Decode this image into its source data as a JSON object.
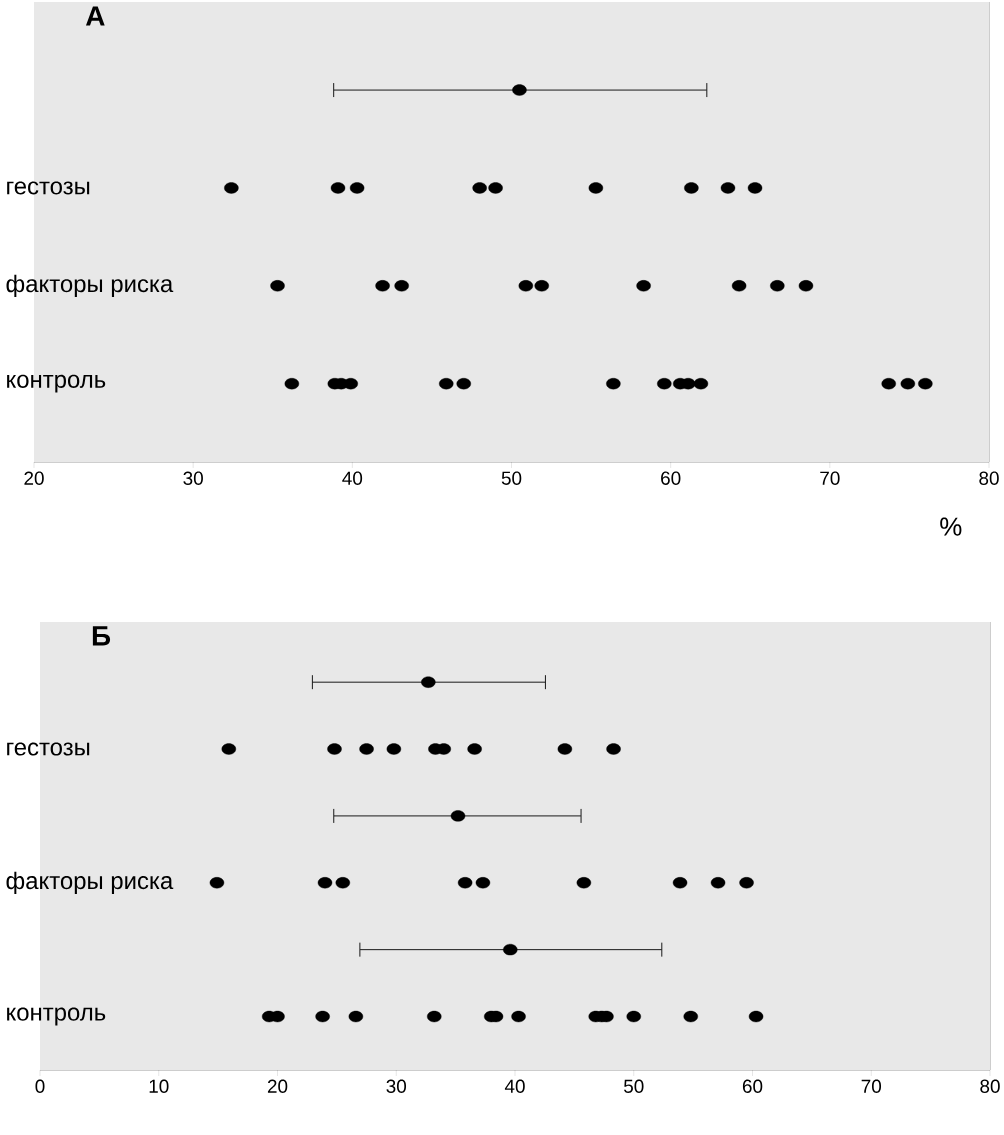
{
  "chart_data": [
    {
      "type": "scatter",
      "title": "А",
      "orientation": "horizontal",
      "categories": [
        null,
        "гестозы",
        "факторы риска",
        "контроль"
      ],
      "xlabel": "%",
      "xlim": [
        20,
        80
      ],
      "xticks": [
        20,
        30,
        40,
        50,
        60,
        70,
        80
      ],
      "series": [
        {
          "color": "#000000",
          "values": [
            50.5,
            null,
            null,
            null
          ],
          "errors": [
            [
              38.8,
              62.3
            ],
            null,
            null,
            null
          ]
        },
        {
          "color": "#000000",
          "x": [
            "гестозы",
            "гестозы",
            "гестозы",
            "гестозы",
            "гестозы",
            "гестозы",
            "гестозы",
            "гестозы",
            "гестозы"
          ],
          "values": [
            32.4,
            39.1,
            40.3,
            48.0,
            49.0,
            55.3,
            61.3,
            63.6,
            65.3
          ]
        },
        {
          "color": "#000000",
          "x": [
            "факторы риска",
            "факторы риска",
            "факторы риска",
            "факторы риска",
            "факторы риска",
            "факторы риска",
            "факторы риска",
            "факторы риска",
            "факторы риска"
          ],
          "values": [
            35.3,
            41.9,
            43.1,
            50.9,
            51.9,
            58.3,
            64.3,
            66.7,
            68.5
          ]
        },
        {
          "color": "#000000",
          "x": [
            "контроль",
            "контроль",
            "контроль",
            "контроль",
            "контроль",
            "контроль",
            "контроль",
            "контроль",
            "контроль",
            "контроль",
            "контроль",
            "контроль",
            "контроль",
            "контроль"
          ],
          "values": [
            36.2,
            38.9,
            39.3,
            39.9,
            45.9,
            47.0,
            56.4,
            59.6,
            60.6,
            61.1,
            61.9,
            73.7,
            74.9,
            76.0
          ]
        }
      ]
    },
    {
      "type": "scatter",
      "title": "Б",
      "orientation": "horizontal",
      "categories": [
        null,
        "гестозы",
        null,
        "факторы риска",
        null,
        "контроль"
      ],
      "xlim": [
        0,
        80
      ],
      "xticks": [
        0,
        10,
        20,
        30,
        40,
        50,
        60,
        70,
        80
      ],
      "series": [
        {
          "color": "#000000",
          "values": [
            32.7,
            null,
            35.2,
            null,
            39.6,
            null
          ],
          "errors": [
            [
              22.9,
              42.6
            ],
            null,
            [
              24.7,
              45.6
            ],
            null,
            [
              26.9,
              52.4
            ],
            null
          ]
        },
        {
          "color": "#000000",
          "x": [
            "гестозы",
            "гестозы",
            "гестозы",
            "гестозы",
            "гестозы",
            "гестозы",
            "гестозы",
            "гестозы",
            "гестозы"
          ],
          "values": [
            15.9,
            24.8,
            27.5,
            29.8,
            33.3,
            34.0,
            36.6,
            44.2,
            48.3
          ]
        },
        {
          "color": "#000000",
          "x": [
            "факторы риска",
            "факторы риска",
            "факторы риска",
            "факторы риска",
            "факторы риска",
            "факторы риска",
            "факторы риска",
            "факторы риска",
            "факторы риска"
          ],
          "values": [
            14.9,
            24.0,
            25.5,
            35.8,
            37.3,
            45.8,
            53.9,
            57.1,
            59.5
          ]
        },
        {
          "color": "#000000",
          "x": [
            "контроль",
            "контроль",
            "контроль",
            "контроль",
            "контроль",
            "контроль",
            "контроль",
            "контроль",
            "контроль",
            "контроль",
            "контроль",
            "контроль",
            "контроль",
            "контроль"
          ],
          "values": [
            19.3,
            20.0,
            23.8,
            26.6,
            33.2,
            38.0,
            38.4,
            40.3,
            46.8,
            47.3,
            47.7,
            50.0,
            54.8,
            60.3
          ]
        }
      ]
    }
  ]
}
